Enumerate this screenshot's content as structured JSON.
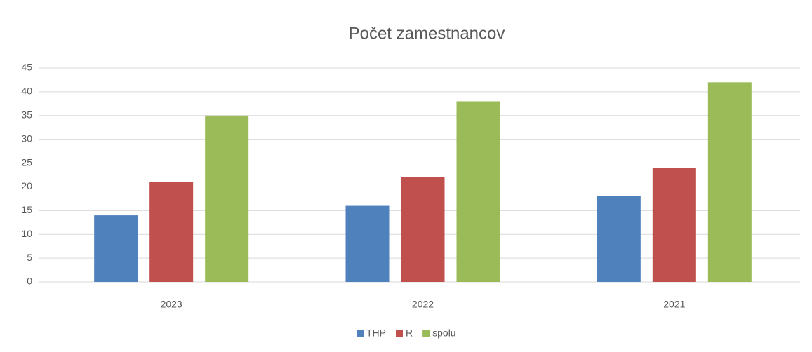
{
  "chart_data": {
    "type": "bar",
    "title": "Počet zamestnancov",
    "categories": [
      "2023",
      "2022",
      "2021"
    ],
    "series": [
      {
        "name": "THP",
        "color": "#4f81bd",
        "values": [
          14,
          16,
          18
        ]
      },
      {
        "name": "R",
        "color": "#c0504d",
        "values": [
          21,
          22,
          24
        ]
      },
      {
        "name": "spolu",
        "color": "#9bbb59",
        "values": [
          35,
          38,
          42
        ]
      }
    ],
    "ylim": [
      0,
      45
    ],
    "yticks": [
      0,
      5,
      10,
      15,
      20,
      25,
      30,
      35,
      40,
      45
    ],
    "grid": true,
    "legend": "bottom"
  }
}
